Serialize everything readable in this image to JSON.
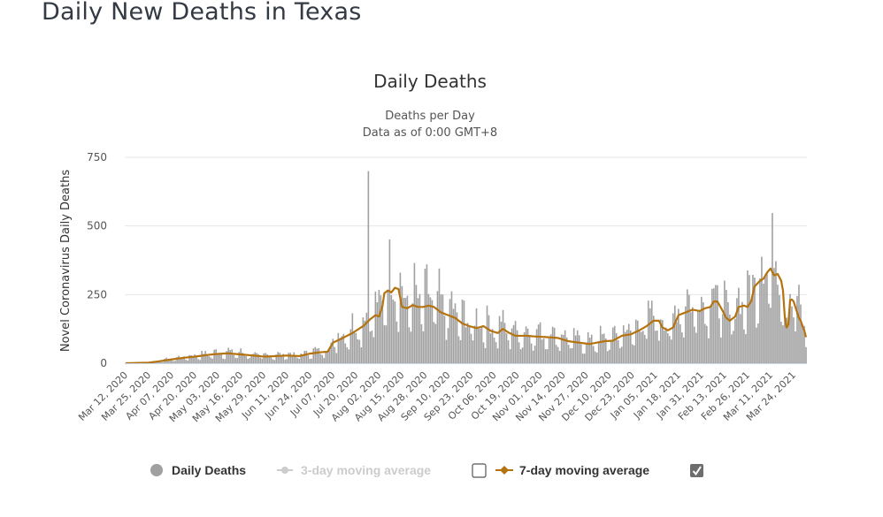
{
  "page": {
    "title": "Daily New Deaths in Texas"
  },
  "chart_data": {
    "type": "bar",
    "title": "Daily Deaths",
    "subtitle_lines": [
      "Deaths per Day",
      "Data as of 0:00 GMT+8"
    ],
    "xlabel": "",
    "ylabel": "Novel Coronavirus Daily Deaths",
    "ylim": [
      0,
      750
    ],
    "yticks": [
      0,
      250,
      500,
      750
    ],
    "grid": true,
    "start_date": "Mar 12, 2020",
    "num_days": 385,
    "tick_interval_days": 13,
    "xtick_labels": [
      "Mar 12, 2020",
      "Mar 25, 2020",
      "Apr 07, 2020",
      "Apr 20, 2020",
      "May 03, 2020",
      "May 16, 2020",
      "May 29, 2020",
      "Jun 11, 2020",
      "Jun 24, 2020",
      "Jul 07, 2020",
      "Jul 20, 2020",
      "Aug 02, 2020",
      "Aug 15, 2020",
      "Aug 28, 2020",
      "Sep 10, 2020",
      "Sep 23, 2020",
      "Oct 06, 2020",
      "Oct 19, 2020",
      "Nov 01, 2020",
      "Nov 14, 2020",
      "Nov 27, 2020",
      "Dec 10, 2020",
      "Dec 23, 2020",
      "Jan 05, 2021",
      "Jan 18, 2021",
      "Jan 31, 2021",
      "Feb 13, 2021",
      "Feb 26, 2021",
      "Mar 11, 2021",
      "Mar 24, 2021"
    ],
    "legend_position": "bottom-center",
    "series": [
      {
        "name": "Daily Deaths",
        "kind": "bar",
        "color": "#a0a0a0",
        "visible": true,
        "approx_weekly_pattern_multipliers": [
          0.55,
          1.25,
          1.35,
          1.2,
          1.1,
          0.95,
          0.6
        ],
        "notable_points": [
          {
            "date": "Jul 27, 2020",
            "value": 700
          }
        ],
        "ma7_keyframes_note": "daily bars estimated as 7-day average × weekday pattern",
        "ma7_keyframes": [
          {
            "day": 0,
            "value": 0
          },
          {
            "day": 13,
            "value": 2
          },
          {
            "day": 20,
            "value": 8
          },
          {
            "day": 26,
            "value": 14
          },
          {
            "day": 33,
            "value": 20
          },
          {
            "day": 39,
            "value": 24
          },
          {
            "day": 46,
            "value": 30
          },
          {
            "day": 52,
            "value": 34
          },
          {
            "day": 58,
            "value": 36
          },
          {
            "day": 65,
            "value": 32
          },
          {
            "day": 72,
            "value": 28
          },
          {
            "day": 78,
            "value": 24
          },
          {
            "day": 85,
            "value": 26
          },
          {
            "day": 91,
            "value": 28
          },
          {
            "day": 98,
            "value": 26
          },
          {
            "day": 104,
            "value": 35
          },
          {
            "day": 110,
            "value": 40
          },
          {
            "day": 114,
            "value": 42
          },
          {
            "day": 117,
            "value": 75
          },
          {
            "day": 122,
            "value": 90
          },
          {
            "day": 128,
            "value": 110
          },
          {
            "day": 134,
            "value": 135
          },
          {
            "day": 138,
            "value": 160
          },
          {
            "day": 141,
            "value": 175
          },
          {
            "day": 143,
            "value": 170
          },
          {
            "day": 145,
            "value": 210
          },
          {
            "day": 146,
            "value": 255
          },
          {
            "day": 148,
            "value": 265
          },
          {
            "day": 150,
            "value": 258
          },
          {
            "day": 152,
            "value": 275
          },
          {
            "day": 154,
            "value": 270
          },
          {
            "day": 156,
            "value": 205
          },
          {
            "day": 159,
            "value": 200
          },
          {
            "day": 162,
            "value": 212
          },
          {
            "day": 165,
            "value": 205
          },
          {
            "day": 168,
            "value": 205
          },
          {
            "day": 171,
            "value": 210
          },
          {
            "day": 174,
            "value": 205
          },
          {
            "day": 178,
            "value": 185
          },
          {
            "day": 182,
            "value": 175
          },
          {
            "day": 186,
            "value": 165
          },
          {
            "day": 190,
            "value": 145
          },
          {
            "day": 194,
            "value": 135
          },
          {
            "day": 198,
            "value": 128
          },
          {
            "day": 202,
            "value": 135
          },
          {
            "day": 206,
            "value": 118
          },
          {
            "day": 210,
            "value": 110
          },
          {
            "day": 213,
            "value": 125
          },
          {
            "day": 216,
            "value": 112
          },
          {
            "day": 220,
            "value": 100
          },
          {
            "day": 226,
            "value": 100
          },
          {
            "day": 232,
            "value": 97
          },
          {
            "day": 238,
            "value": 95
          },
          {
            "day": 244,
            "value": 92
          },
          {
            "day": 250,
            "value": 80
          },
          {
            "day": 256,
            "value": 75
          },
          {
            "day": 262,
            "value": 70
          },
          {
            "day": 266,
            "value": 75
          },
          {
            "day": 270,
            "value": 80
          },
          {
            "day": 275,
            "value": 82
          },
          {
            "day": 280,
            "value": 100
          },
          {
            "day": 285,
            "value": 105
          },
          {
            "day": 290,
            "value": 120
          },
          {
            "day": 294,
            "value": 135
          },
          {
            "day": 298,
            "value": 155
          },
          {
            "day": 301,
            "value": 155
          },
          {
            "day": 303,
            "value": 130
          },
          {
            "day": 306,
            "value": 120
          },
          {
            "day": 309,
            "value": 130
          },
          {
            "day": 312,
            "value": 175
          },
          {
            "day": 316,
            "value": 185
          },
          {
            "day": 320,
            "value": 195
          },
          {
            "day": 324,
            "value": 190
          },
          {
            "day": 327,
            "value": 200
          },
          {
            "day": 330,
            "value": 205
          },
          {
            "day": 332,
            "value": 225
          },
          {
            "day": 334,
            "value": 225
          },
          {
            "day": 337,
            "value": 190
          },
          {
            "day": 339,
            "value": 165
          },
          {
            "day": 341,
            "value": 155
          },
          {
            "day": 344,
            "value": 170
          },
          {
            "day": 346,
            "value": 205
          },
          {
            "day": 349,
            "value": 210
          },
          {
            "day": 351,
            "value": 205
          },
          {
            "day": 353,
            "value": 225
          },
          {
            "day": 355,
            "value": 280
          },
          {
            "day": 358,
            "value": 300
          },
          {
            "day": 360,
            "value": 308
          }
        ]
      },
      {
        "name": "3-day moving average",
        "kind": "line",
        "color": "#cccccc",
        "visible": false
      },
      {
        "name": "7-day moving average",
        "kind": "line",
        "color": "#b5730f",
        "visible": true
      }
    ],
    "daily_values": [],
    "ma7_values": []
  },
  "legend": {
    "items": [
      {
        "label": "Daily Deaths",
        "active": true
      },
      {
        "label": "3-day moving average",
        "active": false,
        "checkbox_checked": false
      },
      {
        "label": "7-day moving average",
        "active": true,
        "checkbox_checked": true
      }
    ]
  }
}
